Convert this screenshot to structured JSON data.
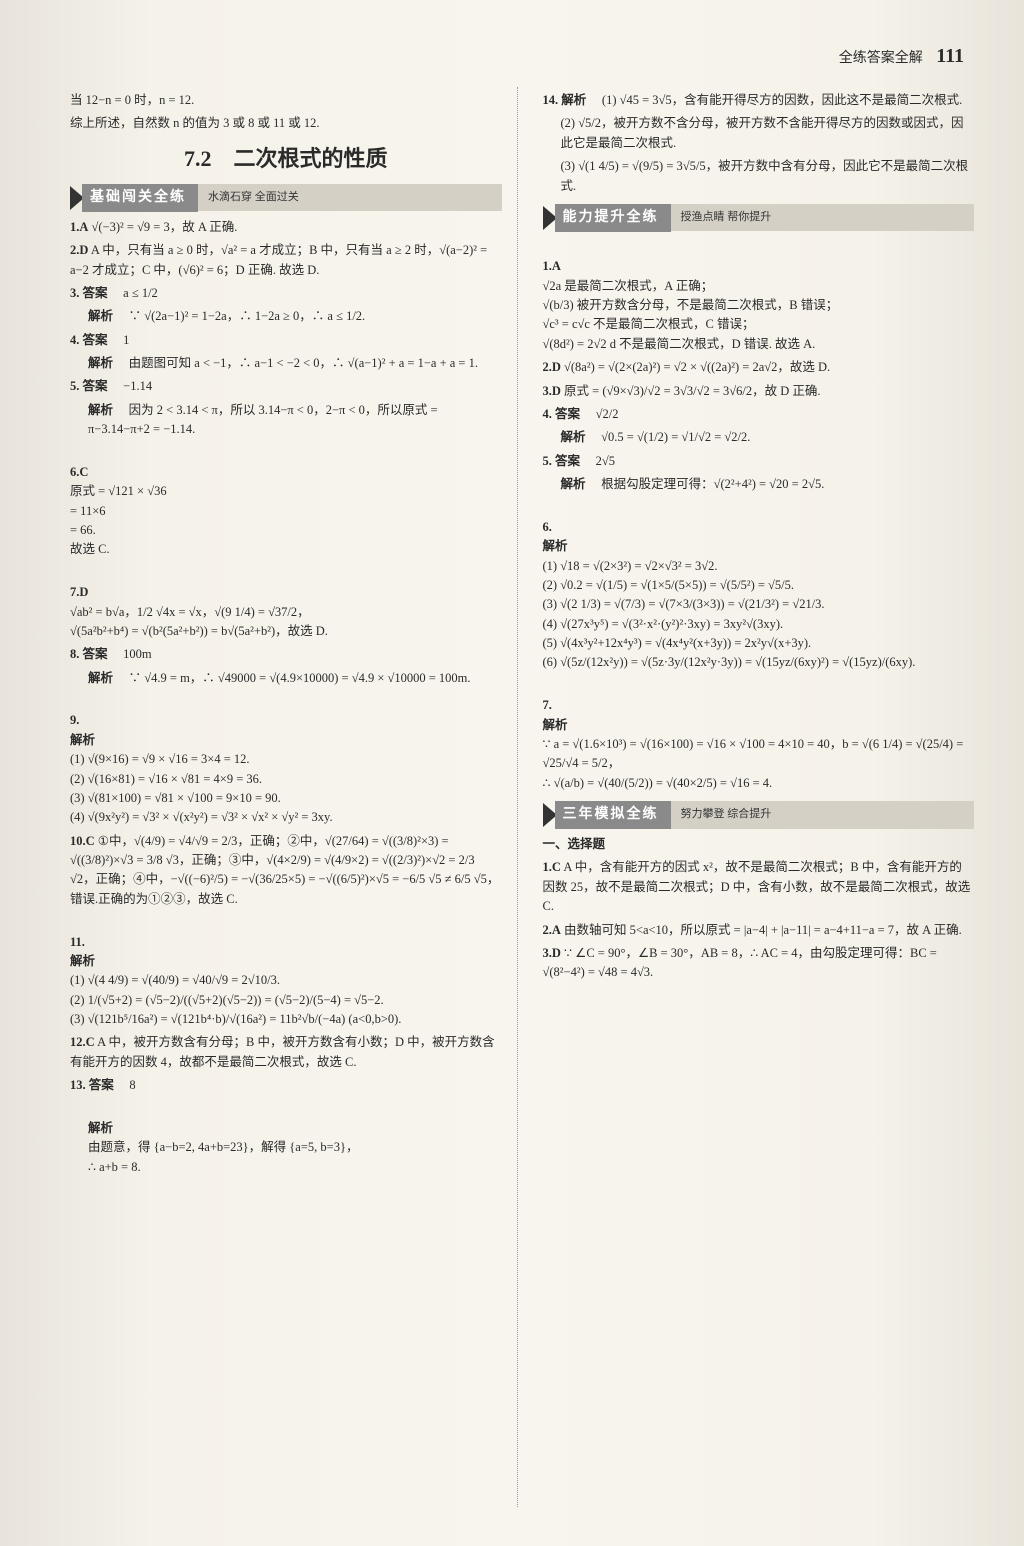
{
  "header": {
    "title": "全练答案全解",
    "page_number": "111"
  },
  "left_column": {
    "intro_lines": [
      "当 12−n = 0 时，n = 12.",
      "综上所述，自然数 n 的值为 3 或 8 或 11 或 12."
    ],
    "section_title": "7.2　二次根式的性质",
    "band1": {
      "main": "基础闯关全练",
      "sub": "水滴石穿 全面过关"
    },
    "items": [
      {
        "num": "1.A",
        "text": "√(−3)² = √9 = 3，故 A 正确."
      },
      {
        "num": "2.D",
        "text": "A 中，只有当 a ≥ 0 时，√a² = a 才成立；B 中，只有当 a ≥ 2 时，√(a−2)² = a−2 才成立；C 中，(√6)² = 6；D 正确. 故选 D."
      },
      {
        "num": "3.",
        "label": "答案",
        "value": "a ≤ 1/2"
      },
      {
        "num": "",
        "label": "解析",
        "value": "∵ √(2a−1)² = 1−2a，∴ 1−2a ≥ 0，∴ a ≤ 1/2."
      },
      {
        "num": "4.",
        "label": "答案",
        "value": "1"
      },
      {
        "num": "",
        "label": "解析",
        "value": "由题图可知 a < −1，∴ a−1 < −2 < 0，∴ √(a−1)² + a = 1−a + a = 1."
      },
      {
        "num": "5.",
        "label": "答案",
        "value": "−1.14"
      },
      {
        "num": "",
        "label": "解析",
        "value": "因为 2 < 3.14 < π，所以 3.14−π < 0，2−π < 0，所以原式 = π−3.14−π+2 = −1.14."
      },
      {
        "num": "6.C",
        "text": "原式 = √121 × √36\n= 11×6\n= 66.\n故选 C."
      },
      {
        "num": "7.D",
        "text": "√ab² = b√a，1/2 √4x = √x，√(9 1/4) = √37/2，\n√(5a²b²+b⁴) = √(b²(5a²+b²)) = b√(5a²+b²)，故选 D."
      },
      {
        "num": "8.",
        "label": "答案",
        "value": "100m"
      },
      {
        "num": "",
        "label": "解析",
        "value": "∵ √4.9 = m，∴ √49000 = √(4.9×10000) = √4.9 × √10000 = 100m."
      },
      {
        "num": "9.",
        "label": "解析",
        "value": "(1) √(9×16) = √9 × √16 = 3×4 = 12.\n(2) √(16×81) = √16 × √81 = 4×9 = 36.\n(3) √(81×100) = √81 × √100 = 9×10 = 90.\n(4) √(9x²y²) = √3² × √(x²y²) = √3² × √x² × √y² = 3xy."
      },
      {
        "num": "10.C",
        "text": "①中，√(4/9) = √4/√9 = 2/3，正确；②中，√(27/64) = √((3/8)²×3) = √((3/8)²)×√3 = 3/8 √3，正确；③中，√(4×2/9) = √(4/9×2) = √((2/3)²)×√2 = 2/3 √2，正确；④中，−√((−6)²/5) = −√(36/25×5) = −√((6/5)²)×√5 = −6/5 √5 ≠ 6/5 √5，错误.正确的为①②③，故选 C."
      },
      {
        "num": "11.",
        "label": "解析",
        "value": "(1) √(4 4/9) = √(40/9) = √40/√9 = 2√10/3.\n(2) 1/(√5+2) = (√5−2)/((√5+2)(√5−2)) = (√5−2)/(5−4) = √5−2.\n(3) √(121b⁵/16a²) = √(121b⁴·b)/√(16a²) = 11b²√b/(−4a) (a<0,b>0)."
      },
      {
        "num": "12.C",
        "text": "A 中，被开方数含有分母；B 中，被开方数含有小数；D 中，被开方数含有能开方的因数 4，故都不是最简二次根式，故选 C."
      },
      {
        "num": "13.",
        "label": "答案",
        "value": "8"
      },
      {
        "num": "",
        "label": "解析",
        "value": "由题意，得 {a−b=2, 4a+b=23}，解得 {a=5, b=3}，\n∴ a+b = 8."
      }
    ]
  },
  "right_column": {
    "item14": {
      "num": "14.",
      "label": "解析",
      "parts": [
        "(1) √45 = 3√5，含有能开得尽方的因数，因此这不是最简二次根式.",
        "(2) √5/2，被开方数不含分母，被开方数不含能开得尽方的因数或因式，因此它是最简二次根式.",
        "(3) √(1 4/5) = √(9/5) = 3√5/5，被开方数中含有分母，因此它不是最简二次根式."
      ]
    },
    "band2": {
      "main": "能力提升全练",
      "sub": "授渔点睛 帮你提升"
    },
    "ability_items": [
      {
        "num": "1.A",
        "text": "√2a 是最简二次根式，A 正确；\n√(b/3) 被开方数含分母，不是最简二次根式，B 错误；\n√c³ = c√c 不是最简二次根式，C 错误；\n√(8d²) = 2√2 d 不是最简二次根式，D 错误. 故选 A."
      },
      {
        "num": "2.D",
        "text": "√(8a²) = √(2×(2a)²) = √2 × √((2a)²) = 2a√2，故选 D."
      },
      {
        "num": "3.D",
        "text": "原式 = (√9×√3)/√2 = 3√3/√2 = 3√6/2，故 D 正确."
      },
      {
        "num": "4.",
        "label": "答案",
        "value": "√2/2"
      },
      {
        "num": "",
        "label": "解析",
        "value": "√0.5 = √(1/2) = √1/√2 = √2/2."
      },
      {
        "num": "5.",
        "label": "答案",
        "value": "2√5"
      },
      {
        "num": "",
        "label": "解析",
        "value": "根据勾股定理可得：√(2²+4²) = √20 = 2√5."
      },
      {
        "num": "6.",
        "label": "解析",
        "value": "(1) √18 = √(2×3²) = √2×√3² = 3√2.\n(2) √0.2 = √(1/5) = √(1×5/(5×5)) = √(5/5²) = √5/5.\n(3) √(2 1/3) = √(7/3) = √(7×3/(3×3)) = √(21/3²) = √21/3.\n(4) √(27x³y⁵) = √(3²·x²·(y²)²·3xy) = 3xy²√(3xy).\n(5) √(4x³y²+12x⁴y³) = √(4x⁴y²(x+3y)) = 2x²y√(x+3y).\n(6) √(5z/(12x²y)) = √(5z·3y/(12x²y·3y)) = √(15yz/(6xy)²) = √(15yz)/(6xy)."
      },
      {
        "num": "7.",
        "label": "解析",
        "value": "∵ a = √(1.6×10³) = √(16×100) = √16 × √100 = 4×10 = 40，b = √(6 1/4) = √(25/4) = √25/√4 = 5/2，\n∴ √(a/b) = √(40/(5/2)) = √(40×2/5) = √16 = 4."
      }
    ],
    "band3": {
      "main": "三年模拟全练",
      "sub": "努力攀登 综合提升"
    },
    "choice_heading": "一、选择题",
    "choice_items": [
      {
        "num": "1.C",
        "text": "A 中，含有能开方的因式 x²，故不是最简二次根式；B 中，含有能开方的因数 25，故不是最简二次根式；D 中，含有小数，故不是最简二次根式，故选 C."
      },
      {
        "num": "2.A",
        "text": "由数轴可知 5<a<10，所以原式 = |a−4| + |a−11| = a−4+11−a = 7，故 A 正确."
      },
      {
        "num": "3.D",
        "text": "∵ ∠C = 90°，∠B = 30°，AB = 8，∴ AC = 4，由勾股定理可得：BC = √(8²−4²) = √48 = 4√3."
      }
    ]
  }
}
